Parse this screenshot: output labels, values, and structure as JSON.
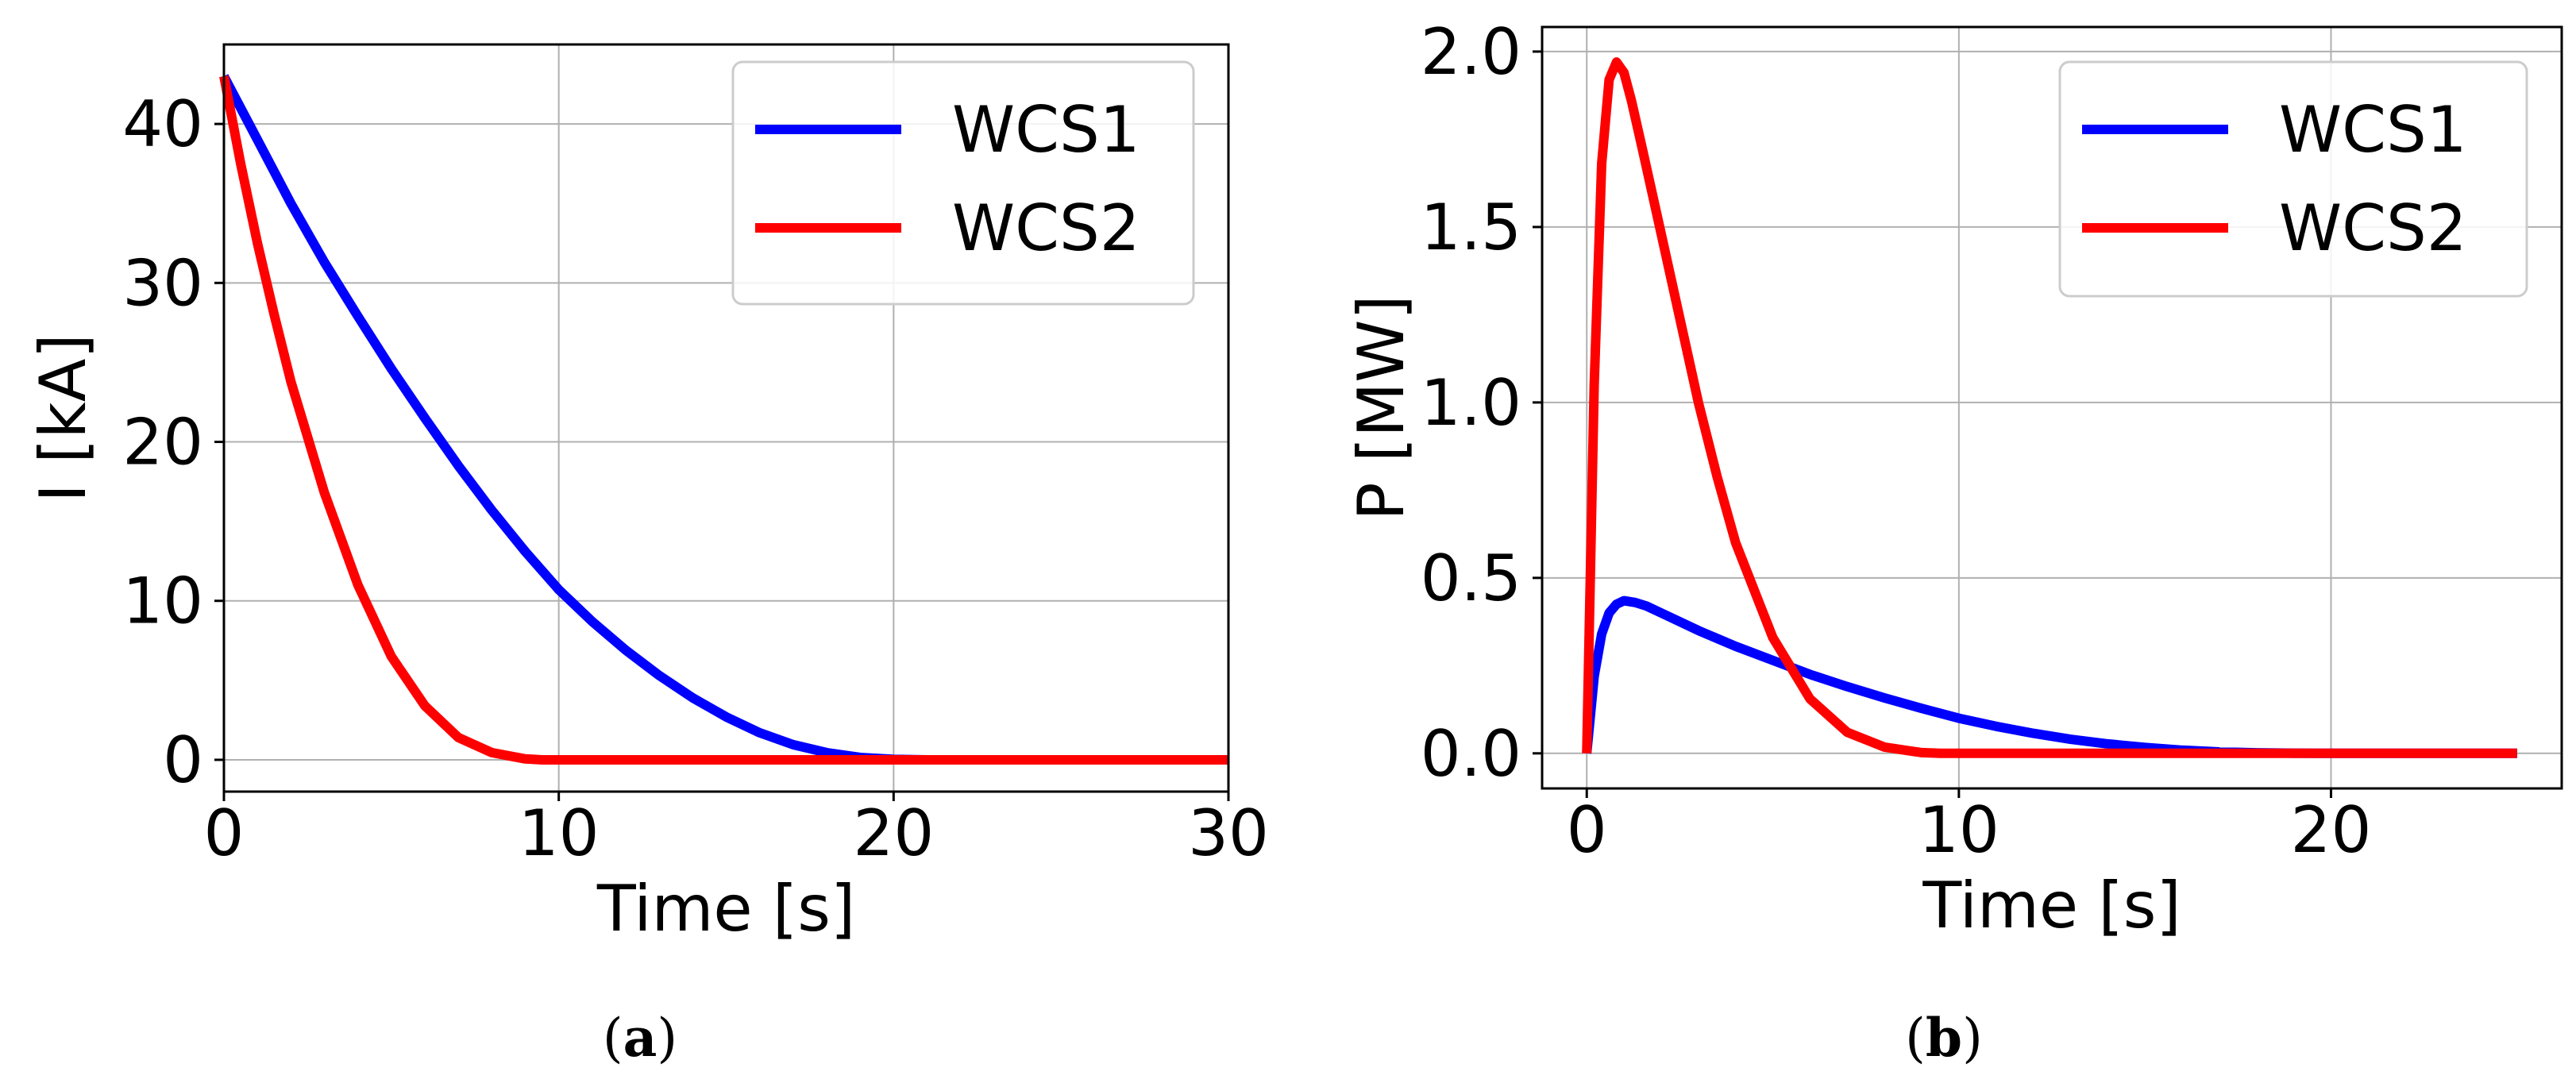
{
  "colors": {
    "wcs1": "#0000ff",
    "wcs2": "#ff0000",
    "grid": "#b0b0b0",
    "axis": "#000000"
  },
  "captions": {
    "a": "a",
    "b": "b"
  },
  "chart_data": [
    {
      "id": "a",
      "type": "line",
      "title": "",
      "xlabel": "Time [s]",
      "ylabel": "I [kA]",
      "xlim": [
        0,
        30
      ],
      "ylim": [
        -2,
        45
      ],
      "xticks": [
        0,
        10,
        20,
        30
      ],
      "xtick_labels": [
        "0",
        "10",
        "20",
        "30"
      ],
      "yticks": [
        0,
        10,
        20,
        30,
        40
      ],
      "ytick_labels": [
        "0",
        "10",
        "20",
        "30",
        "40"
      ],
      "grid": true,
      "legend_position": "top-right",
      "series": [
        {
          "name": "WCS1",
          "color": "#0000ff",
          "x": [
            0,
            1,
            2,
            3,
            4,
            5,
            6,
            7,
            8,
            9,
            10,
            11,
            12,
            13,
            14,
            15,
            16,
            17,
            18,
            19,
            20,
            21,
            22,
            24,
            26,
            28,
            30
          ],
          "y": [
            43,
            39.0,
            35.0,
            31.3,
            27.9,
            24.6,
            21.5,
            18.5,
            15.7,
            13.1,
            10.7,
            8.7,
            6.9,
            5.3,
            3.9,
            2.7,
            1.7,
            0.95,
            0.45,
            0.15,
            0.03,
            0,
            0,
            0,
            0,
            0,
            0
          ]
        },
        {
          "name": "WCS2",
          "color": "#ff0000",
          "x": [
            0,
            0.5,
            1,
            1.5,
            2,
            3,
            4,
            5,
            6,
            7,
            8,
            9,
            9.5,
            10,
            12,
            15,
            20,
            25,
            30
          ],
          "y": [
            43,
            37.5,
            32.5,
            28.0,
            23.8,
            16.8,
            11.0,
            6.5,
            3.4,
            1.4,
            0.45,
            0.06,
            0,
            0,
            0,
            0,
            0,
            0,
            0
          ]
        }
      ]
    },
    {
      "id": "b",
      "type": "line",
      "title": "",
      "xlabel": "Time [s]",
      "ylabel": "P [MW]",
      "xlim": [
        -1.2,
        26.2
      ],
      "ylim": [
        -0.1,
        2.07
      ],
      "xticks": [
        0,
        10,
        20
      ],
      "xtick_labels": [
        "0",
        "10",
        "20"
      ],
      "yticks": [
        0.0,
        0.5,
        1.0,
        1.5,
        2.0
      ],
      "ytick_labels": [
        "0.0",
        "0.5",
        "1.0",
        "1.5",
        "2.0"
      ],
      "grid": true,
      "legend_position": "top-right",
      "series": [
        {
          "name": "WCS1",
          "color": "#0000ff",
          "x": [
            0,
            0.2,
            0.4,
            0.6,
            0.8,
            1.0,
            1.3,
            1.6,
            2,
            3,
            4,
            5,
            6,
            7,
            8,
            9,
            10,
            11,
            12,
            13,
            14,
            15,
            16,
            17,
            18,
            19,
            20,
            21,
            22,
            25
          ],
          "y": [
            0,
            0.22,
            0.34,
            0.4,
            0.425,
            0.435,
            0.43,
            0.42,
            0.4,
            0.35,
            0.305,
            0.265,
            0.225,
            0.19,
            0.158,
            0.128,
            0.1,
            0.077,
            0.057,
            0.04,
            0.027,
            0.017,
            0.009,
            0.004,
            0.0015,
            0.0004,
            0,
            0,
            0,
            0
          ]
        },
        {
          "name": "WCS2",
          "color": "#ff0000",
          "x": [
            0,
            0.2,
            0.4,
            0.6,
            0.8,
            1.0,
            1.2,
            1.5,
            2,
            2.5,
            3,
            3.5,
            4,
            5,
            6,
            7,
            8,
            9,
            9.5,
            10,
            12,
            15,
            20,
            25
          ],
          "y": [
            0,
            1.05,
            1.68,
            1.92,
            1.97,
            1.94,
            1.86,
            1.72,
            1.48,
            1.24,
            1.0,
            0.79,
            0.6,
            0.33,
            0.155,
            0.06,
            0.018,
            0.002,
            0,
            0,
            0,
            0,
            0,
            0
          ]
        }
      ]
    }
  ]
}
